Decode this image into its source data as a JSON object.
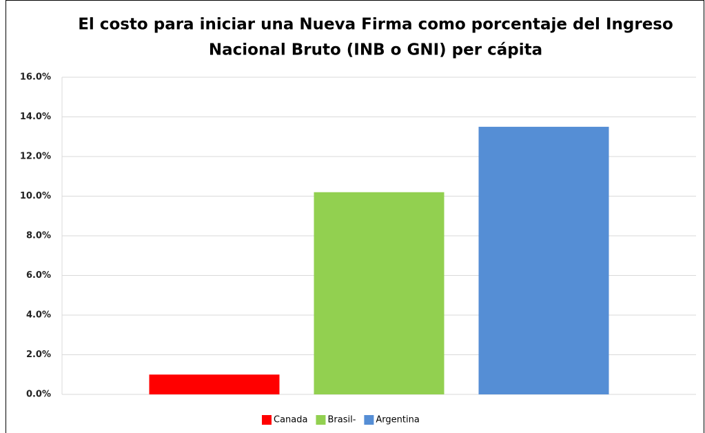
{
  "chart_data": {
    "type": "bar",
    "title": [
      "El costo para iniciar una Nueva Firma como porcentaje del Ingreso",
      "Nacional Bruto (INB o GNI) per cápita"
    ],
    "categories": [
      null
    ],
    "series": [
      {
        "name": "Canada",
        "color": "#ff0000",
        "values": [
          1.0
        ]
      },
      {
        "name": "Brasil-",
        "color": "#92d050",
        "values": [
          10.2
        ]
      },
      {
        "name": "Argentina",
        "color": "#558ed5",
        "values": [
          13.5
        ]
      }
    ],
    "ylim": [
      0,
      16
    ],
    "yticks": [
      {
        "value": 0,
        "label": "0.0%"
      },
      {
        "value": 2,
        "label": "2.0%"
      },
      {
        "value": 4,
        "label": "4.0%"
      },
      {
        "value": 6,
        "label": "6.0%"
      },
      {
        "value": 8,
        "label": "8.0%"
      },
      {
        "value": 10,
        "label": "10.0%"
      },
      {
        "value": 12,
        "label": "12.0%"
      },
      {
        "value": 14,
        "label": "14.0%"
      },
      {
        "value": 16,
        "label": "16.0%"
      }
    ],
    "grid": true,
    "legend": "bottom"
  }
}
